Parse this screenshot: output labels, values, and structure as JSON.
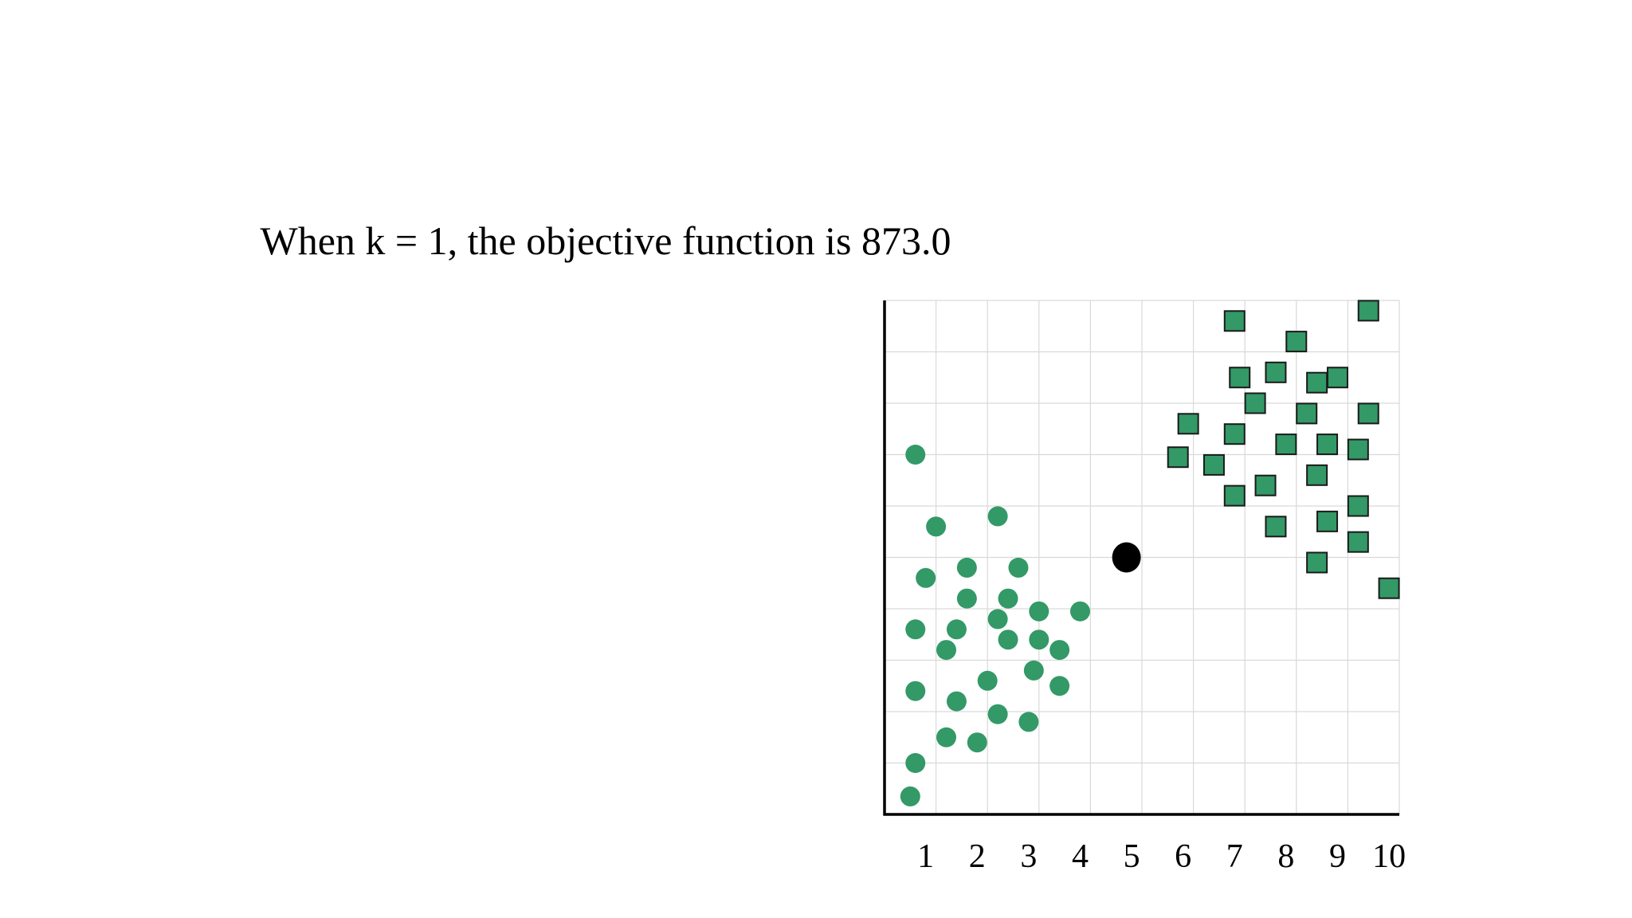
{
  "title": "When k = 1, the objective function is 873.0",
  "colors": {
    "points": "#339966",
    "marker_stroke": "#1a1a1a",
    "centroid": "#000000",
    "grid": "#d9d9d9",
    "axis": "#000000"
  },
  "chart_data": {
    "type": "scatter",
    "title": "When k = 1, the objective function is 873.0",
    "xlabel": "",
    "ylabel": "",
    "xlim": [
      0,
      10
    ],
    "ylim": [
      0,
      10
    ],
    "grid": true,
    "x_ticks": [
      "1",
      "2",
      "3",
      "4",
      "5",
      "6",
      "7",
      "8",
      "9",
      "10"
    ],
    "series": [
      {
        "marker": "circle",
        "points": [
          [
            0.6,
            7.0
          ],
          [
            1.0,
            5.6
          ],
          [
            2.2,
            5.8
          ],
          [
            0.8,
            4.6
          ],
          [
            1.6,
            4.8
          ],
          [
            2.6,
            4.8
          ],
          [
            1.6,
            4.2
          ],
          [
            2.4,
            4.2
          ],
          [
            3.0,
            3.95
          ],
          [
            3.8,
            3.95
          ],
          [
            2.2,
            3.8
          ],
          [
            0.6,
            3.6
          ],
          [
            1.4,
            3.6
          ],
          [
            2.4,
            3.4
          ],
          [
            3.0,
            3.4
          ],
          [
            1.2,
            3.2
          ],
          [
            3.4,
            3.2
          ],
          [
            2.9,
            2.8
          ],
          [
            2.0,
            2.6
          ],
          [
            3.4,
            2.5
          ],
          [
            0.6,
            2.4
          ],
          [
            1.4,
            2.2
          ],
          [
            2.2,
            1.95
          ],
          [
            2.8,
            1.8
          ],
          [
            1.2,
            1.5
          ],
          [
            1.8,
            1.4
          ],
          [
            0.6,
            1.0
          ],
          [
            0.5,
            0.35
          ]
        ]
      },
      {
        "marker": "square",
        "points": [
          [
            6.8,
            9.6
          ],
          [
            9.4,
            9.8
          ],
          [
            8.0,
            9.2
          ],
          [
            6.9,
            8.5
          ],
          [
            7.6,
            8.6
          ],
          [
            8.4,
            8.4
          ],
          [
            8.8,
            8.5
          ],
          [
            7.2,
            8.0
          ],
          [
            8.2,
            7.8
          ],
          [
            9.4,
            7.8
          ],
          [
            5.9,
            7.6
          ],
          [
            6.8,
            7.4
          ],
          [
            7.8,
            7.2
          ],
          [
            8.6,
            7.2
          ],
          [
            9.2,
            7.1
          ],
          [
            5.7,
            6.95
          ],
          [
            6.4,
            6.8
          ],
          [
            8.4,
            6.6
          ],
          [
            7.4,
            6.4
          ],
          [
            6.8,
            6.2
          ],
          [
            9.2,
            6.0
          ],
          [
            8.6,
            5.7
          ],
          [
            7.6,
            5.6
          ],
          [
            9.2,
            5.3
          ],
          [
            8.4,
            4.9
          ],
          [
            9.8,
            4.4
          ]
        ]
      }
    ],
    "centroids": [
      [
        4.7,
        5.0
      ]
    ]
  }
}
